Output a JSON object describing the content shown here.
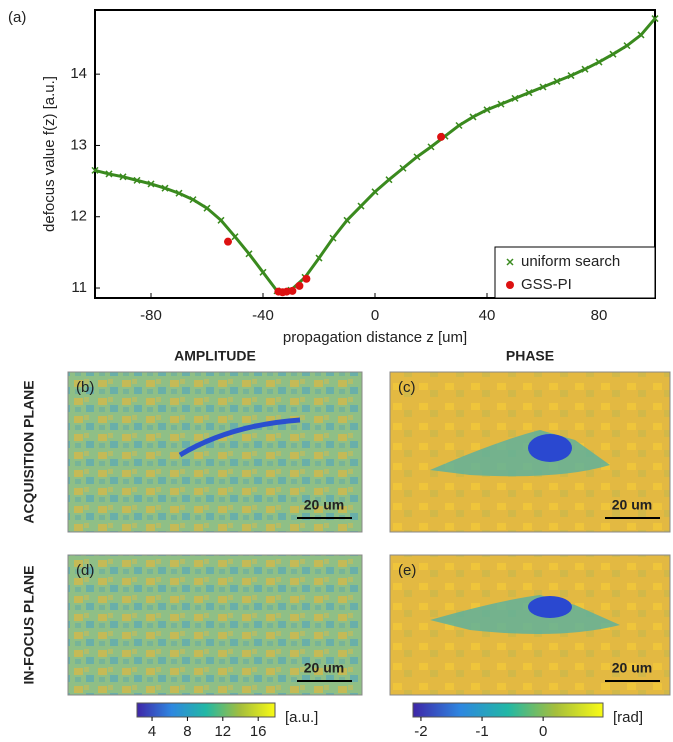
{
  "chart_data": {
    "type": "scatter",
    "panel_label": "(a)",
    "x_label": "propagation distance z [um]",
    "y_label": "defocus value f(z) [a.u.]",
    "xlim": [
      -100,
      100
    ],
    "xticks": [
      -80,
      -40,
      0,
      40,
      80
    ],
    "ylim": [
      10.86,
      14.9
    ],
    "yticks": [
      11,
      12,
      13,
      14
    ],
    "legend": "lower right",
    "series": [
      {
        "name": "uniform search",
        "color": "#3a8a1e",
        "marker": "x",
        "x": [
          -100,
          -95,
          -90,
          -85,
          -80,
          -75,
          -70,
          -65,
          -60,
          -55,
          -50,
          -45,
          -40,
          -35,
          -30,
          -25,
          -20,
          -15,
          -10,
          -5,
          0,
          5,
          10,
          15,
          20,
          25,
          30,
          35,
          40,
          45,
          50,
          55,
          60,
          65,
          70,
          75,
          80,
          85,
          90,
          95,
          100
        ],
        "values": [
          12.65,
          12.6,
          12.56,
          12.51,
          12.46,
          12.4,
          12.33,
          12.24,
          12.12,
          11.95,
          11.72,
          11.48,
          11.22,
          10.96,
          10.97,
          11.15,
          11.42,
          11.7,
          11.95,
          12.15,
          12.35,
          12.52,
          12.68,
          12.84,
          12.98,
          13.13,
          13.28,
          13.4,
          13.5,
          13.58,
          13.66,
          13.74,
          13.82,
          13.9,
          13.98,
          14.07,
          14.17,
          14.28,
          14.4,
          14.55,
          14.78
        ]
      },
      {
        "name": "GSS-PI",
        "color": "#dd1111",
        "marker": "o",
        "x": [
          -52.5,
          -34.5,
          -33,
          -31.5,
          -29.5,
          -27,
          -24.5,
          23.6
        ],
        "values": [
          11.65,
          10.95,
          10.94,
          10.95,
          10.96,
          11.03,
          11.13,
          13.12
        ]
      }
    ]
  },
  "figure": {
    "columns": [
      "AMPLITUDE",
      "PHASE"
    ],
    "rows": [
      "ACQUISITION PLANE",
      "IN-FOCUS PLANE"
    ],
    "panels": [
      "(b)",
      "(c)",
      "(d)",
      "(e)"
    ],
    "scale_bar": "20 um",
    "colorbars": [
      {
        "lim": [
          2.3,
          17.9
        ],
        "ticks": [
          4,
          8,
          12,
          16
        ],
        "unit": "[a.u.]"
      },
      {
        "lim": [
          -2.13,
          0.98
        ],
        "ticks": [
          -2,
          -1,
          0
        ],
        "unit": "[rad]"
      }
    ]
  }
}
